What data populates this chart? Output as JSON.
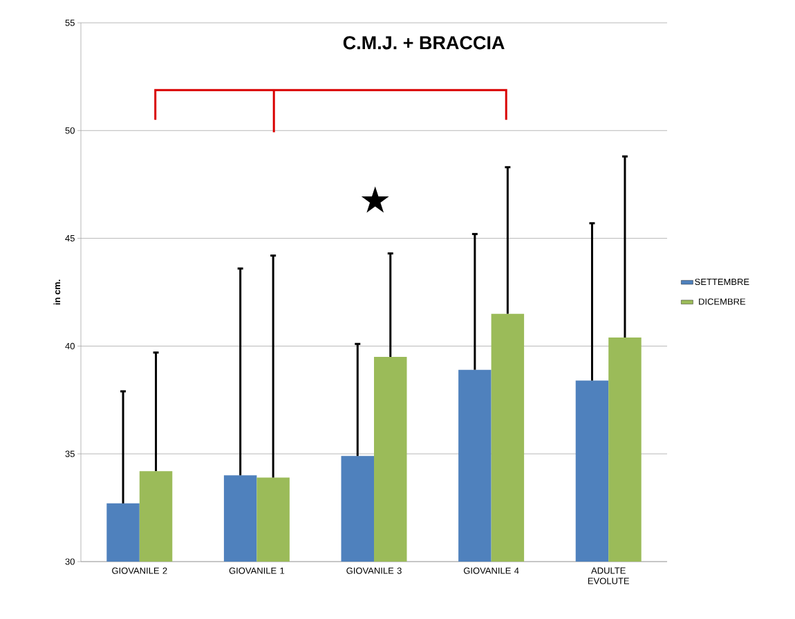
{
  "chart_data": {
    "type": "bar",
    "title": "C.M.J. + BRACCIA",
    "ylabel": "in cm.",
    "categories": [
      "GIOVANILE 2",
      "GIOVANILE 1",
      "GIOVANILE 3",
      "GIOVANILE 4",
      "ADULTE EVOLUTE"
    ],
    "series": [
      {
        "name": "SETTEMBRE",
        "color": "#4f81bd",
        "values": [
          32.7,
          34.0,
          34.9,
          38.9,
          38.4
        ],
        "errors": [
          [
            32.7,
            37.9
          ],
          [
            34.0,
            43.6
          ],
          [
            34.9,
            40.1
          ],
          [
            38.9,
            45.2
          ],
          [
            38.4,
            45.7
          ]
        ]
      },
      {
        "name": "DICEMBRE",
        "color": "#9bbb59",
        "values": [
          34.2,
          33.9,
          39.5,
          41.5,
          40.4
        ],
        "errors": [
          [
            34.2,
            39.7
          ],
          [
            33.9,
            44.2
          ],
          [
            39.5,
            44.3
          ],
          [
            41.5,
            48.3
          ],
          [
            40.4,
            48.8
          ]
        ]
      }
    ],
    "annotations": [
      "★"
    ],
    "ylim": [
      30,
      55
    ],
    "yticks": [
      30,
      35,
      40,
      45,
      50,
      55
    ],
    "grid": "y",
    "legend": "right"
  }
}
